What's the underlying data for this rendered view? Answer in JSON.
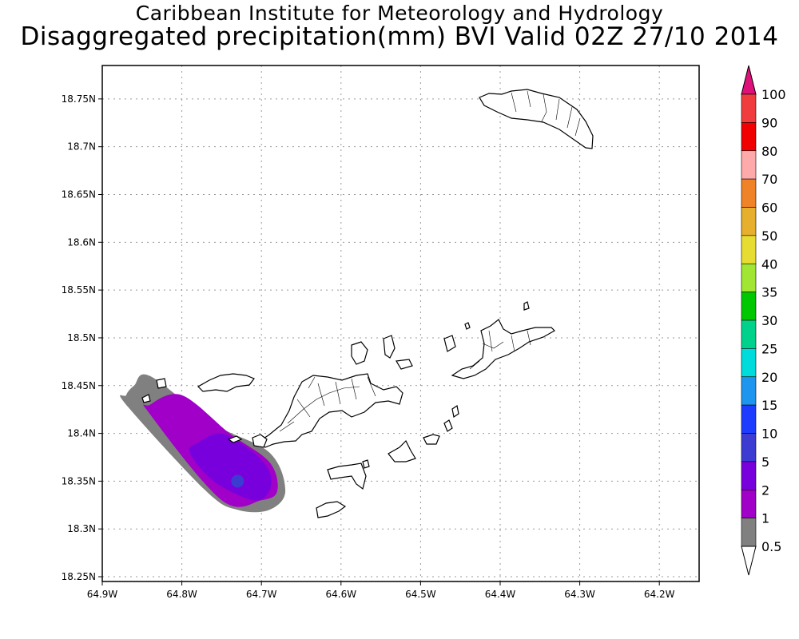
{
  "title": "Caribbean Institute for Meteorology and Hydrology",
  "subtitle": "Disaggregated precipitation(mm) BVI Valid 02Z 27/10 2014",
  "axes": {
    "lon_ticks": [
      "64.9W",
      "64.8W",
      "64.7W",
      "64.6W",
      "64.5W",
      "64.4W",
      "64.3W",
      "64.2W"
    ],
    "lat_ticks": [
      "18.75N",
      "18.7N",
      "18.65N",
      "18.6N",
      "18.55N",
      "18.5N",
      "18.45N",
      "18.4N",
      "18.35N",
      "18.3N",
      "18.25N"
    ],
    "lon_range": [
      -64.9,
      -64.15
    ],
    "lat_range": [
      18.245,
      18.785
    ],
    "grid": true
  },
  "colorbar": {
    "labels": [
      "100",
      "90",
      "80",
      "70",
      "60",
      "50",
      "40",
      "35",
      "30",
      "25",
      "20",
      "15",
      "10",
      "5",
      "2",
      "1",
      "0.5"
    ],
    "colors": [
      "#f03c3c",
      "#f00000",
      "#ffaaaa",
      "#f08228",
      "#e6af2d",
      "#e6dc32",
      "#a0e632",
      "#00c800",
      "#00d28c",
      "#00dcdc",
      "#1e96f0",
      "#1e3cff",
      "#3c3cd2",
      "#7800dc",
      "#a000c8",
      "#808080"
    ],
    "top_arrow_color": "#e0107a",
    "bottom_arrow_color": "#ffffff"
  },
  "chart_data": {
    "type": "heatmap",
    "variable": "Disaggregated precipitation",
    "units": "mm",
    "region": "BVI",
    "valid_time": "02Z 27/10 2014",
    "contours": [
      {
        "level": "0.5-1",
        "color": "#808080",
        "lon": [
          -64.86,
          -64.84,
          -64.76,
          -64.69,
          -64.67,
          -64.69,
          -64.73,
          -64.77,
          -64.87,
          -64.87
        ],
        "lat": [
          18.45,
          18.46,
          18.41,
          18.38,
          18.34,
          18.32,
          18.32,
          18.34,
          18.43,
          18.44
        ]
      },
      {
        "level": "1-2",
        "color": "#a000c8",
        "lon": [
          -64.84,
          -64.8,
          -64.74,
          -64.69,
          -64.68,
          -64.7,
          -64.75,
          -64.84
        ],
        "lat": [
          18.43,
          18.44,
          18.4,
          18.37,
          18.34,
          18.33,
          18.33,
          18.42
        ]
      },
      {
        "level": "2-5",
        "color": "#7800dc",
        "lon": [
          -64.78,
          -64.75,
          -64.71,
          -64.69,
          -64.69,
          -64.71,
          -64.76,
          -64.79
        ],
        "lat": [
          18.39,
          18.4,
          18.38,
          18.36,
          18.34,
          18.33,
          18.35,
          18.38
        ]
      },
      {
        "level": "5-10",
        "color": "#3c3cd2",
        "lon": [
          -64.73
        ],
        "lat": [
          18.35
        ]
      }
    ]
  }
}
